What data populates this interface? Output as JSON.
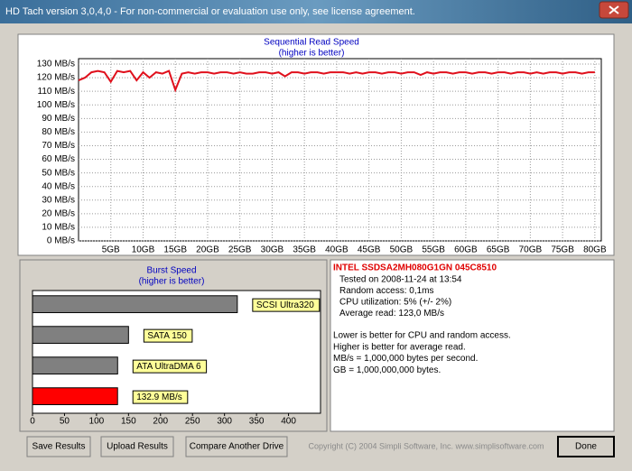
{
  "window": {
    "title": "HD Tach version 3,0,4,0  - For non-commercial or evaluation use only, see license agreement."
  },
  "chart_data": [
    {
      "type": "line",
      "title": "Sequential Read Speed",
      "subtitle": "(higher is better)",
      "color": "#e0101c",
      "grid": true,
      "x": [
        0,
        1,
        2,
        3,
        4,
        5,
        6,
        7,
        8,
        9,
        10,
        11,
        12,
        13,
        14,
        15,
        16,
        17,
        18,
        19,
        20,
        21,
        22,
        23,
        24,
        25,
        26,
        27,
        28,
        29,
        30,
        31,
        32,
        33,
        34,
        35,
        36,
        37,
        38,
        39,
        40,
        41,
        42,
        43,
        44,
        45,
        46,
        47,
        48,
        49,
        50,
        51,
        52,
        53,
        54,
        55,
        56,
        57,
        58,
        59,
        60,
        61,
        62,
        63,
        64,
        65,
        66,
        67,
        68,
        69,
        70,
        71,
        72,
        73,
        74,
        75,
        76,
        77,
        78,
        79,
        80
      ],
      "values": [
        118,
        120,
        124,
        125,
        124,
        117,
        125,
        124,
        125,
        118,
        124,
        120,
        124,
        123,
        125,
        111,
        123,
        124,
        123,
        124,
        124,
        123,
        124,
        124,
        123,
        124,
        123,
        123,
        124,
        124,
        123,
        124,
        121,
        124,
        124,
        123,
        124,
        124,
        123,
        124,
        124,
        124,
        123,
        124,
        123,
        124,
        124,
        123,
        124,
        124,
        123,
        124,
        124,
        122,
        124,
        123,
        124,
        124,
        123,
        124,
        124,
        123,
        124,
        124,
        123,
        124,
        124,
        123,
        124,
        124,
        123,
        124,
        123,
        124,
        124,
        123,
        124,
        124,
        123,
        124,
        124
      ],
      "xlim": [
        0,
        81
      ],
      "ylim": [
        0,
        134
      ],
      "xticks": [
        {
          "value": 5,
          "label": "5GB"
        },
        {
          "value": 10,
          "label": "10GB"
        },
        {
          "value": 15,
          "label": "15GB"
        },
        {
          "value": 20,
          "label": "20GB"
        },
        {
          "value": 25,
          "label": "25GB"
        },
        {
          "value": 30,
          "label": "30GB"
        },
        {
          "value": 35,
          "label": "35GB"
        },
        {
          "value": 40,
          "label": "40GB"
        },
        {
          "value": 45,
          "label": "45GB"
        },
        {
          "value": 50,
          "label": "50GB"
        },
        {
          "value": 55,
          "label": "55GB"
        },
        {
          "value": 60,
          "label": "60GB"
        },
        {
          "value": 65,
          "label": "65GB"
        },
        {
          "value": 70,
          "label": "70GB"
        },
        {
          "value": 75,
          "label": "75GB"
        },
        {
          "value": 80,
          "label": "80GB"
        }
      ],
      "yticks": [
        {
          "value": 0,
          "label": "0 MB/s"
        },
        {
          "value": 10,
          "label": "10 MB/s"
        },
        {
          "value": 20,
          "label": "20 MB/s"
        },
        {
          "value": 30,
          "label": "30 MB/s"
        },
        {
          "value": 40,
          "label": "40 MB/s"
        },
        {
          "value": 50,
          "label": "50 MB/s"
        },
        {
          "value": 60,
          "label": "60 MB/s"
        },
        {
          "value": 70,
          "label": "70 MB/s"
        },
        {
          "value": 80,
          "label": "80 MB/s"
        },
        {
          "value": 90,
          "label": "90 MB/s"
        },
        {
          "value": 100,
          "label": "100 MB/s"
        },
        {
          "value": 110,
          "label": "110 MB/s"
        },
        {
          "value": 120,
          "label": "120 MB/s"
        },
        {
          "value": 130,
          "label": "130 MB/s"
        }
      ]
    },
    {
      "type": "bar",
      "horizontal": true,
      "title": "Burst Speed",
      "subtitle": "(higher is better)",
      "categories": [
        "SCSI Ultra320",
        "SATA 150",
        "ATA UltraDMA 6",
        null
      ],
      "values": [
        320,
        150,
        133,
        132.9
      ],
      "value_labels": [
        null,
        null,
        null,
        "132.9 MB/s"
      ],
      "colors": [
        "#808080",
        "#808080",
        "#808080",
        "#ff0000"
      ],
      "xlim": [
        0,
        450
      ],
      "xticks": [
        0,
        50,
        100,
        150,
        200,
        250,
        300,
        350,
        400
      ]
    }
  ],
  "info": {
    "drive": "INTEL SSDSA2MH080G1GN 045C8510",
    "results": [
      "Tested on 2008-11-24 at 13:54",
      "Random access: 0,1ms",
      "CPU utilization: 5% (+/- 2%)",
      "Average read: 123,0 MB/s"
    ],
    "notes": [
      "Lower is better for CPU and random access.",
      "Higher is better for average read.",
      "MB/s = 1,000,000 bytes per second.",
      "GB = 1,000,000,000 bytes."
    ]
  },
  "buttons": [
    "Save Results",
    "Upload Results",
    "Compare Another Drive",
    "Done"
  ],
  "copyright": "Copyright (C) 2004 Simpli Software, Inc. www.simplisoftware.com"
}
